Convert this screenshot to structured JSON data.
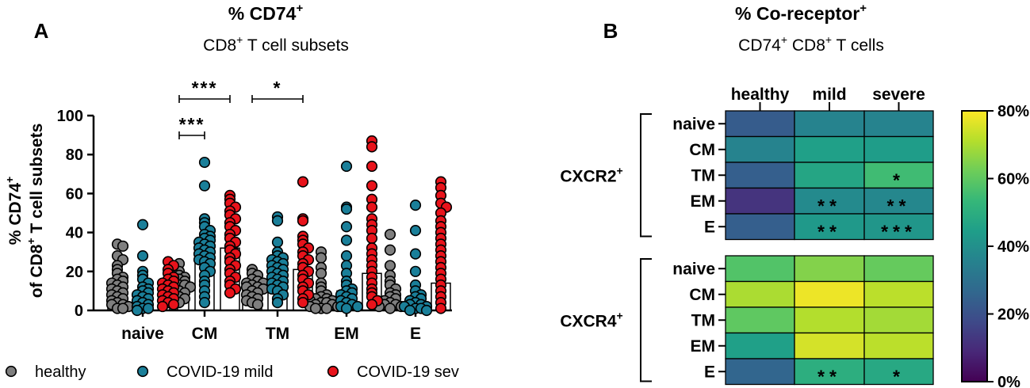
{
  "chart_data": [
    {
      "type": "scatter",
      "panel_label": "A",
      "title": "% CD74",
      "title_sup": "+",
      "subtitle": {
        "prefix": "CD8",
        "sup": "+",
        "suffix": " T cell subsets"
      },
      "ylabel": {
        "line1": "% CD74",
        "line1_sup": "+",
        "line2_prefix": "of CD8",
        "line2_sup": "+",
        "line2_suffix": " T cell subsets"
      },
      "ylim": [
        0,
        100
      ],
      "yticks": [
        0,
        20,
        40,
        60,
        80,
        100
      ],
      "categories": [
        "naive",
        "CM",
        "TM",
        "EM",
        "E"
      ],
      "series": [
        {
          "name": "healthy",
          "color": "#7f7f7f",
          "medians": [
            10,
            12,
            13,
            6,
            7
          ],
          "points": [
            [
              34,
              33,
              28,
              26,
              23,
              21,
              19,
              17,
              16,
              15,
              14,
              13,
              12,
              11,
              10,
              9,
              8,
              7,
              6,
              5,
              4,
              3,
              3,
              2,
              1,
              1
            ],
            [
              24,
              20,
              18,
              17,
              16,
              15,
              14,
              13,
              13,
              12,
              12,
              11,
              10,
              9,
              8,
              7,
              6,
              5,
              4
            ],
            [
              21,
              19,
              18,
              16,
              15,
              14,
              14,
              13,
              12,
              12,
              11,
              10,
              9,
              8,
              7,
              6,
              5,
              4,
              3
            ],
            [
              30,
              27,
              22,
              19,
              14,
              12,
              10,
              8,
              7,
              6,
              6,
              5,
              5,
              4,
              4,
              3,
              3,
              2,
              2,
              1,
              1,
              1
            ],
            [
              39,
              31,
              23,
              18,
              15,
              13,
              11,
              9,
              8,
              7,
              6,
              5,
              4,
              3,
              3,
              2,
              2,
              1
            ]
          ]
        },
        {
          "name": "COVID-19 mild",
          "color": "#1a7f99",
          "medians": [
            8,
            30,
            19,
            10,
            3
          ],
          "points": [
            [
              44,
              28,
              20,
              18,
              16,
              14,
              12,
              11,
              10,
              9,
              8,
              7,
              6,
              5,
              4,
              3,
              2,
              1,
              1,
              0
            ],
            [
              76,
              64,
              47,
              45,
              43,
              41,
              39,
              38,
              37,
              36,
              35,
              34,
              33,
              32,
              31,
              30,
              29,
              28,
              27,
              26,
              25,
              24,
              22,
              20,
              18,
              15,
              13,
              10,
              7,
              4
            ],
            [
              48,
              46,
              35,
              30,
              28,
              27,
              26,
              25,
              24,
              23,
              22,
              21,
              20,
              19,
              18,
              17,
              16,
              15,
              14,
              13,
              12,
              11,
              10,
              8,
              6,
              4
            ],
            [
              74,
              53,
              52,
              43,
              36,
              28,
              23,
              19,
              15,
              13,
              11,
              10,
              9,
              8,
              7,
              6,
              5,
              4,
              3,
              2,
              2,
              1
            ],
            [
              54,
              41,
              29,
              20,
              13,
              10,
              8,
              7,
              6,
              5,
              4,
              3,
              3,
              2,
              2,
              1,
              1,
              0,
              0
            ]
          ]
        },
        {
          "name": "COVID-19 sev",
          "color": "#e8131b",
          "medians": [
            9,
            32,
            21,
            19,
            14
          ],
          "points": [
            [
              25,
              23,
              21,
              19,
              17,
              16,
              15,
              14,
              13,
              12,
              11,
              10,
              9,
              8,
              7,
              6,
              5,
              4,
              3,
              2
            ],
            [
              59,
              57,
              55,
              53,
              51,
              49,
              47,
              45,
              43,
              41,
              39,
              37,
              35,
              33,
              31,
              29,
              27,
              25,
              23,
              21,
              19,
              17,
              15,
              13,
              11,
              9
            ],
            [
              66,
              47,
              46,
              38,
              36,
              34,
              32,
              30,
              28,
              26,
              24,
              22,
              20,
              18,
              16,
              14,
              12,
              10,
              8,
              6,
              4
            ],
            [
              87,
              84,
              74,
              64,
              57,
              53,
              47,
              44,
              41,
              37,
              32,
              29,
              26,
              23,
              20,
              17,
              14,
              11,
              9,
              7,
              5,
              3
            ],
            [
              66,
              63,
              59,
              55,
              53,
              50,
              46,
              43,
              40,
              37,
              34,
              31,
              28,
              25,
              22,
              19,
              16,
              13,
              10,
              7,
              4,
              1
            ]
          ]
        }
      ],
      "significance": [
        {
          "text": "***",
          "from": "CM:healthy",
          "to": "CM:sev"
        },
        {
          "text": "***",
          "from": "CM:healthy",
          "to": "CM:mild"
        },
        {
          "text": "*",
          "from": "TM:healthy",
          "to": "TM:sev"
        }
      ],
      "legend": {
        "position": "bottom",
        "entries": [
          "healthy",
          "COVID-19 mild",
          "COVID-19 sev"
        ]
      }
    },
    {
      "type": "heatmap",
      "panel_label": "B",
      "title": "% Co-receptor",
      "title_sup": "+",
      "subtitle": {
        "a": "CD74",
        "a_sup": "+",
        "b": " CD8",
        "b_sup": "+",
        "c": " T cells"
      },
      "columns": [
        "healthy",
        "mild",
        "severe"
      ],
      "rows": [
        "naive",
        "CM",
        "TM",
        "EM",
        "E"
      ],
      "groups": [
        {
          "name": "CXCR2",
          "sup": "+",
          "values": [
            [
              23,
              36,
              36
            ],
            [
              36,
              45,
              44
            ],
            [
              24,
              47,
              55
            ],
            [
              12,
              38,
              37
            ],
            [
              24,
              43,
              42
            ]
          ],
          "stars": [
            [
              "",
              "",
              ""
            ],
            [
              "",
              "",
              ""
            ],
            [
              "",
              "",
              "*"
            ],
            [
              "",
              "**",
              "**"
            ],
            [
              "",
              "**",
              "***"
            ]
          ]
        },
        {
          "name": "CXCR4",
          "sup": "+",
          "values": [
            [
              58,
              65,
              61
            ],
            [
              70,
              78,
              72
            ],
            [
              60,
              71,
              69
            ],
            [
              45,
              75,
              72
            ],
            [
              26,
              50,
              48
            ]
          ],
          "stars": [
            [
              "",
              "",
              ""
            ],
            [
              "",
              "",
              ""
            ],
            [
              "",
              "",
              ""
            ],
            [
              "",
              "",
              ""
            ],
            [
              "",
              "**",
              "*"
            ]
          ]
        }
      ],
      "colorbar": {
        "colormap": "viridis",
        "min": 0,
        "max": 80,
        "ticks": [
          "0%",
          "20%",
          "40%",
          "60%",
          "80%"
        ]
      }
    }
  ]
}
